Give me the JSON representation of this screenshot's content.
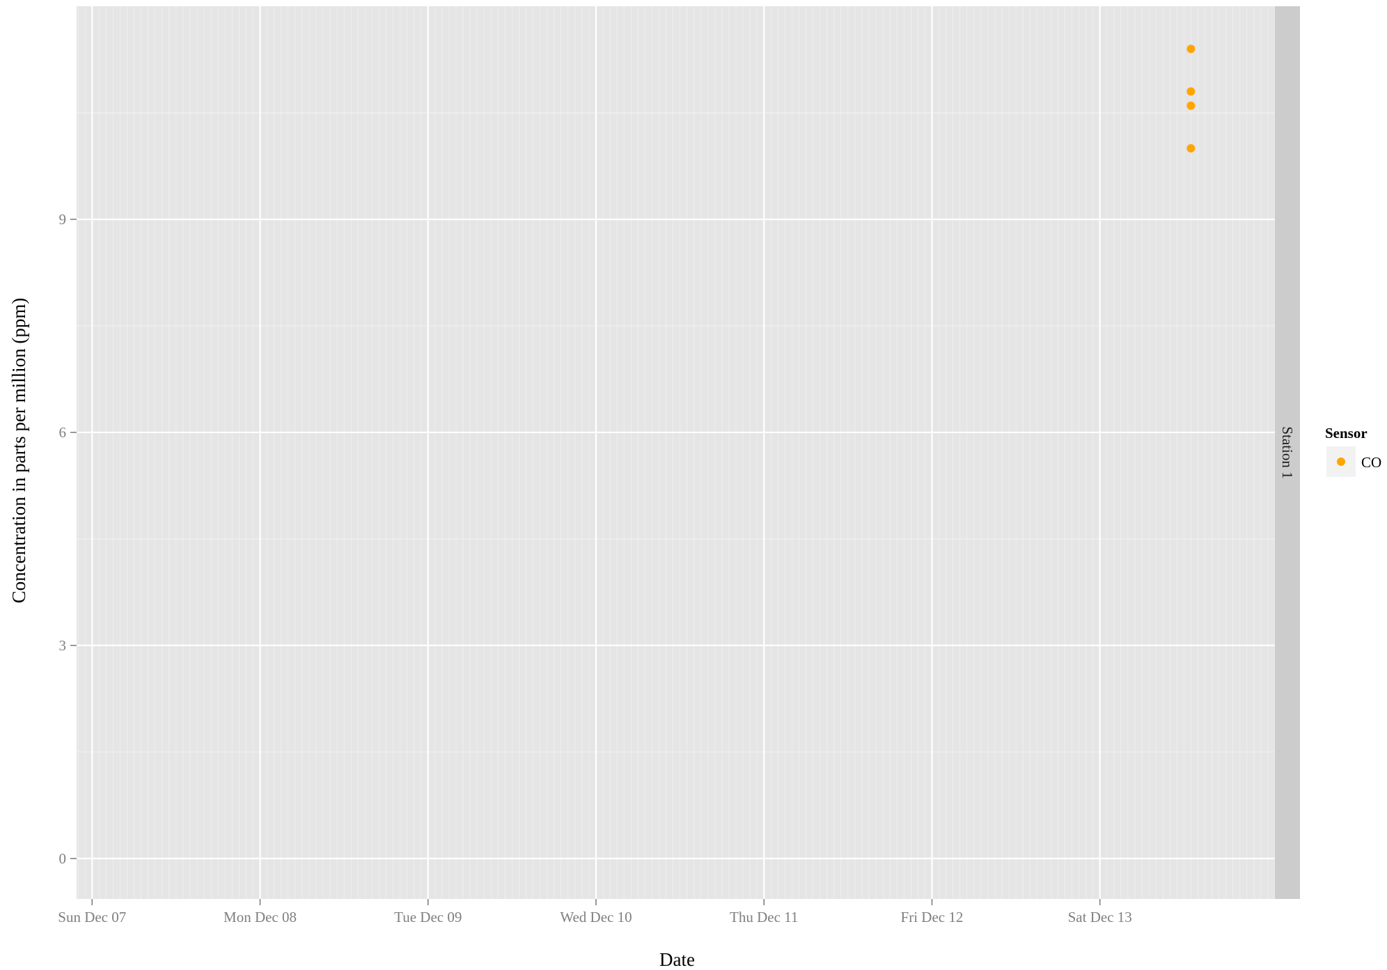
{
  "chart_data": {
    "type": "scatter",
    "xlabel": "Date",
    "ylabel": "Concentration in parts per million (ppm)",
    "facet_label": "Station 1",
    "x_ticks": [
      {
        "date": "2014-12-07T00:00",
        "label": "Sun Dec 07"
      },
      {
        "date": "2014-12-08T00:00",
        "label": "Mon Dec 08"
      },
      {
        "date": "2014-12-09T00:00",
        "label": "Tue Dec 09"
      },
      {
        "date": "2014-12-10T00:00",
        "label": "Wed Dec 10"
      },
      {
        "date": "2014-12-11T00:00",
        "label": "Thu Dec 11"
      },
      {
        "date": "2014-12-12T00:00",
        "label": "Fri Dec 12"
      },
      {
        "date": "2014-12-13T00:00",
        "label": "Sat Dec 13"
      }
    ],
    "xlim": [
      "2014-12-06T21:47",
      "2014-12-14T01:00"
    ],
    "y_ticks": [
      0,
      3,
      6,
      9
    ],
    "ylim": [
      -0.57,
      12.0
    ],
    "grid": true,
    "legend": {
      "title": "Sensor",
      "position": "right",
      "entries": [
        {
          "label": "CO",
          "color": "#ffa500"
        }
      ]
    },
    "series": [
      {
        "name": "CO",
        "color": "#ffa500",
        "points": [
          {
            "x": "2014-12-13T13:00",
            "y": 11.4
          },
          {
            "x": "2014-12-13T13:00",
            "y": 10.8
          },
          {
            "x": "2014-12-13T13:00",
            "y": 10.6
          },
          {
            "x": "2014-12-13T13:00",
            "y": 10.0
          }
        ]
      }
    ]
  }
}
